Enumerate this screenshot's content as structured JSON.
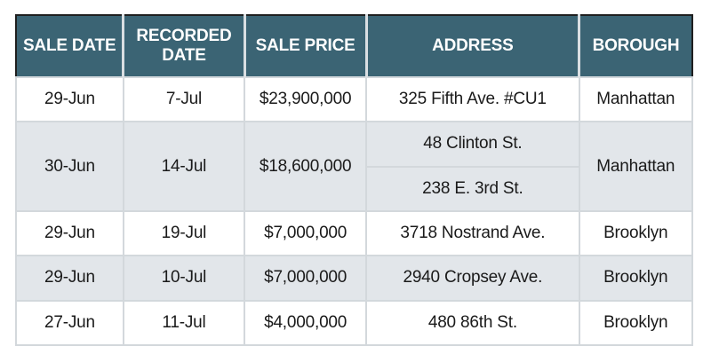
{
  "table": {
    "headers": [
      "SALE DATE",
      "RECORDED DATE",
      "SALE PRICE",
      "ADDRESS",
      "BOROUGH"
    ],
    "header_lines": {
      "recorded_1": "RECORDED",
      "recorded_2": "DATE"
    },
    "rows": [
      {
        "sale_date": "29-Jun",
        "recorded_date": "7-Jul",
        "sale_price": "$23,900,000",
        "addresses": [
          "325 Fifth Ave. #CU1"
        ],
        "borough": "Manhattan"
      },
      {
        "sale_date": "30-Jun",
        "recorded_date": "14-Jul",
        "sale_price": "$18,600,000",
        "addresses": [
          "48 Clinton St.",
          "238 E. 3rd St."
        ],
        "borough": "Manhattan"
      },
      {
        "sale_date": "29-Jun",
        "recorded_date": "19-Jul",
        "sale_price": "$7,000,000",
        "addresses": [
          "3718 Nostrand Ave."
        ],
        "borough": "Brooklyn"
      },
      {
        "sale_date": "29-Jun",
        "recorded_date": "10-Jul",
        "sale_price": "$7,000,000",
        "addresses": [
          "2940 Cropsey Ave."
        ],
        "borough": "Brooklyn"
      },
      {
        "sale_date": "27-Jun",
        "recorded_date": "11-Jul",
        "sale_price": "$4,000,000",
        "addresses": [
          "480 86th St."
        ],
        "borough": "Brooklyn"
      }
    ]
  },
  "colors": {
    "header_bg": "#3b6474",
    "header_text": "#ffffff",
    "row_shade": "#e2e6ea",
    "row_white": "#ffffff",
    "grid": "#d3d8dc"
  }
}
